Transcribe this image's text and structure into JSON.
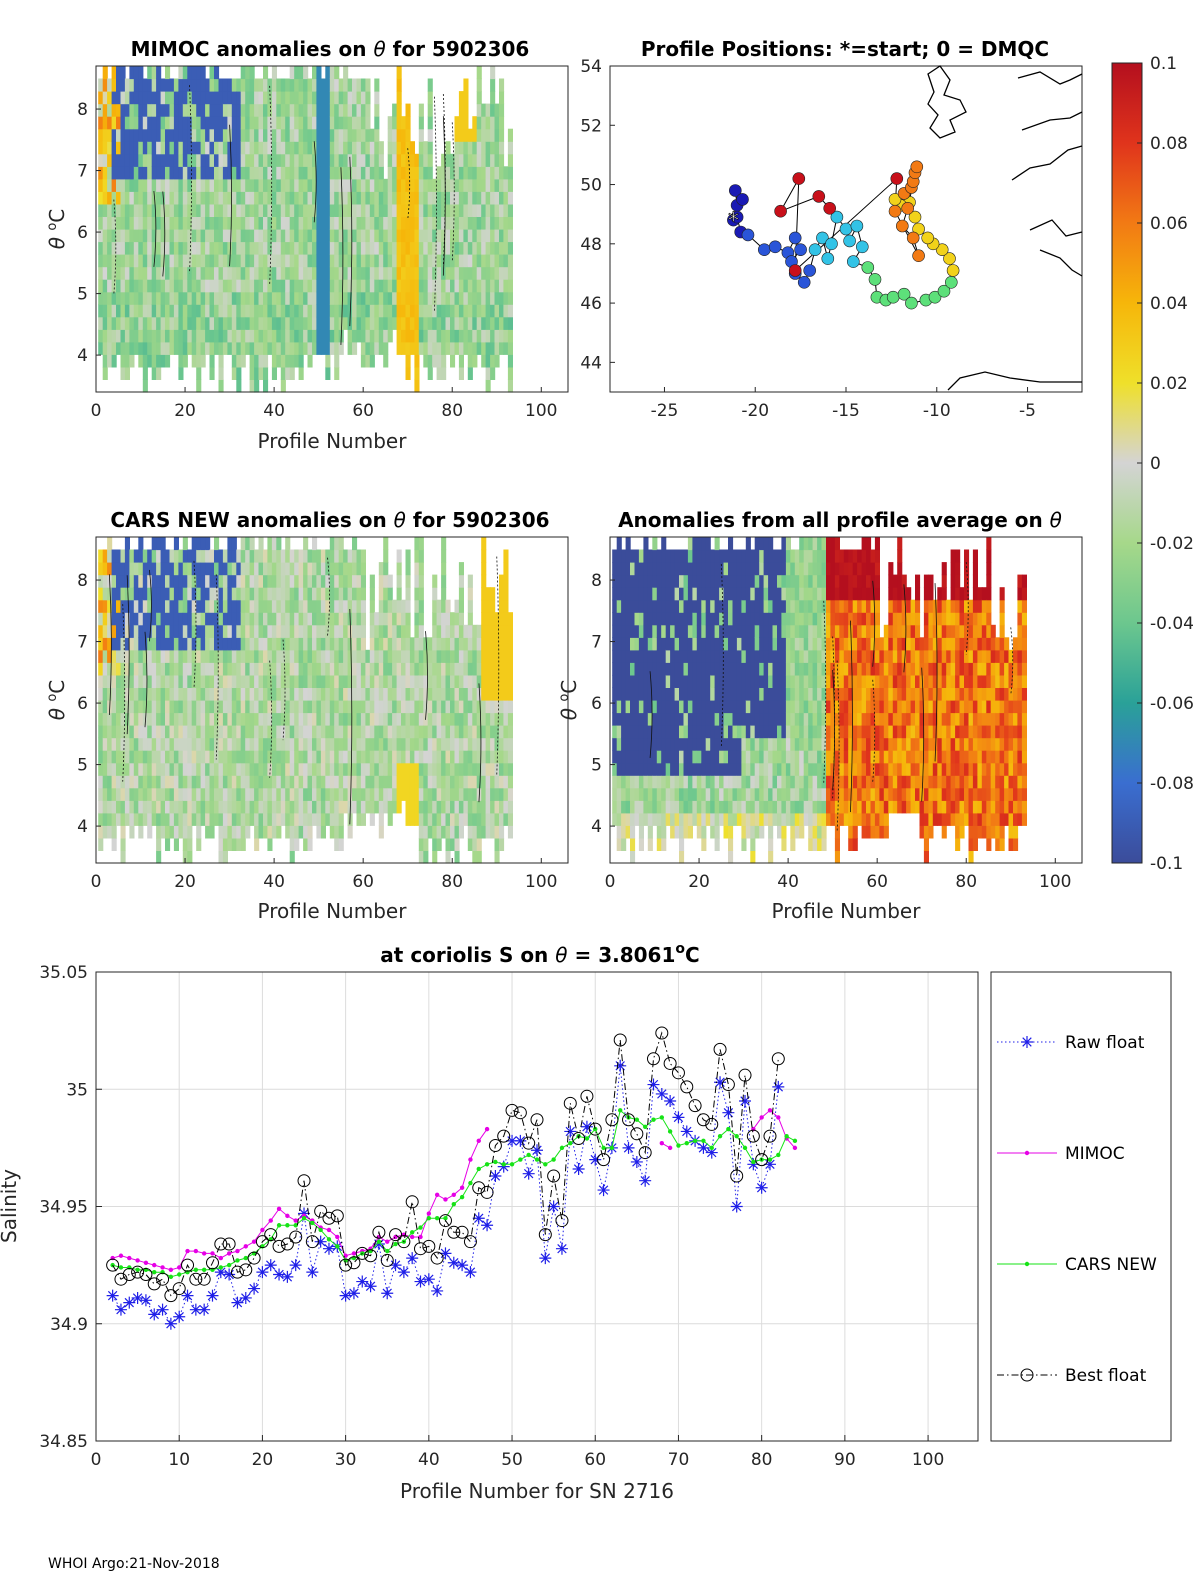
{
  "footer": "WHOI Argo:21-Nov-2018",
  "colorbar": {
    "ticks": [
      "0.1",
      "0.08",
      "0.06",
      "0.04",
      "0.02",
      "0",
      "-0.02",
      "-0.04",
      "-0.06",
      "-0.08",
      "-0.1"
    ],
    "values": [
      0.1,
      0.08,
      0.06,
      0.04,
      0.02,
      0,
      -0.02,
      -0.04,
      -0.06,
      -0.08,
      -0.1
    ],
    "colors": [
      "#b40f1e",
      "#e0341c",
      "#f27a14",
      "#f6b60a",
      "#efe02a",
      "#d4d4d4",
      "#a6d88a",
      "#6cc78e",
      "#2aa198",
      "#3a6ed0",
      "#3b4c9a"
    ]
  },
  "chart_data": [
    {
      "id": "mimoc",
      "type": "heatmap",
      "title_text": "MIMOC anomalies on",
      "title_symbol": "θ",
      "title_suffix": "  for 5902306",
      "xlabel": "Profile Number",
      "ylabel_symbol": "θ",
      "ylabel_unit": "C",
      "ylabel_super": "o",
      "xlim": [
        0,
        106
      ],
      "ylim": [
        3.4,
        8.7
      ],
      "xticks": [
        0,
        20,
        40,
        60,
        80,
        100
      ],
      "yticks": [
        4,
        5,
        6,
        7,
        8
      ],
      "profiles_shown": [
        1,
        93
      ],
      "description_values": [
        -0.1,
        0.1
      ]
    },
    {
      "id": "positions",
      "type": "scatter",
      "title": "Profile Positions: *=start; 0 = DMQC",
      "xlim": [
        -28,
        -2
      ],
      "ylim": [
        43,
        54
      ],
      "xticks": [
        -25,
        -20,
        -15,
        -10,
        -5
      ],
      "yticks": [
        44,
        46,
        48,
        50,
        52,
        54
      ],
      "track": [
        [
          -21.2,
          48.8
        ],
        [
          -21.0,
          49.3
        ],
        [
          -21.1,
          49.8
        ],
        [
          -20.7,
          49.5
        ],
        [
          -21.0,
          48.9
        ],
        [
          -20.8,
          48.4
        ],
        [
          -20.4,
          48.3
        ],
        [
          -19.5,
          47.8
        ],
        [
          -18.9,
          47.9
        ],
        [
          -18.2,
          47.7
        ],
        [
          -17.8,
          48.2
        ],
        [
          -17.5,
          47.8
        ],
        [
          -18.0,
          47.4
        ],
        [
          -17.8,
          47.0
        ],
        [
          -17.3,
          46.7
        ],
        [
          -17.0,
          47.1
        ],
        [
          -16.7,
          47.8
        ],
        [
          -16.3,
          48.2
        ],
        [
          -16.0,
          47.5
        ],
        [
          -15.8,
          48.0
        ],
        [
          -15.5,
          48.9
        ],
        [
          -15.0,
          48.5
        ],
        [
          -14.8,
          48.1
        ],
        [
          -14.4,
          48.6
        ],
        [
          -14.1,
          47.9
        ],
        [
          -14.6,
          47.4
        ],
        [
          -13.8,
          47.2
        ],
        [
          -13.4,
          46.8
        ],
        [
          -13.3,
          46.2
        ],
        [
          -12.8,
          46.1
        ],
        [
          -12.4,
          46.2
        ],
        [
          -11.8,
          46.3
        ],
        [
          -11.4,
          46.0
        ],
        [
          -10.6,
          46.1
        ],
        [
          -10.1,
          46.2
        ],
        [
          -9.6,
          46.4
        ],
        [
          -9.2,
          46.7
        ],
        [
          -9.1,
          47.1
        ],
        [
          -9.3,
          47.5
        ],
        [
          -9.7,
          47.8
        ],
        [
          -10.2,
          48.0
        ],
        [
          -10.5,
          48.2
        ],
        [
          -11.0,
          48.5
        ],
        [
          -11.2,
          48.9
        ],
        [
          -11.5,
          49.4
        ],
        [
          -12.0,
          49.3
        ],
        [
          -12.3,
          49.5
        ],
        [
          -11.8,
          49.7
        ],
        [
          -11.4,
          49.9
        ],
        [
          -11.3,
          50.1
        ],
        [
          -11.2,
          50.4
        ],
        [
          -11.1,
          50.6
        ],
        [
          -11.6,
          49.2
        ],
        [
          -11.9,
          48.6
        ],
        [
          -11.3,
          48.2
        ],
        [
          -11.0,
          47.6
        ],
        [
          -12.3,
          49.1
        ],
        [
          -12.2,
          50.2
        ],
        [
          -17.8,
          47.1
        ],
        [
          -17.6,
          50.2
        ],
        [
          -18.6,
          49.1
        ],
        [
          -16.5,
          49.6
        ],
        [
          -15.9,
          49.2
        ]
      ],
      "start": [
        -21.2,
        48.8
      ]
    },
    {
      "id": "cars",
      "type": "heatmap",
      "title_text": "CARS NEW anomalies on",
      "title_symbol": "θ",
      "title_suffix": " for 5902306",
      "xlabel": "Profile Number",
      "ylabel_symbol": "θ",
      "ylabel_unit": "C",
      "ylabel_super": "o",
      "xlim": [
        0,
        106
      ],
      "ylim": [
        3.4,
        8.7
      ],
      "xticks": [
        0,
        20,
        40,
        60,
        80,
        100
      ],
      "yticks": [
        4,
        5,
        6,
        7,
        8
      ]
    },
    {
      "id": "avg",
      "type": "heatmap",
      "title_text": "Anomalies from all profile average on",
      "title_symbol": "θ",
      "xlabel": "Profile Number",
      "ylabel_symbol": "θ",
      "ylabel_unit": "C",
      "ylabel_super": "o",
      "xlim": [
        0,
        106
      ],
      "ylim": [
        3.4,
        8.7
      ],
      "xticks": [
        0,
        20,
        40,
        60,
        80,
        100
      ],
      "yticks": [
        4,
        5,
        6,
        7,
        8
      ]
    },
    {
      "id": "salinity",
      "type": "line",
      "title_text": "at coriolis S on",
      "title_symbol": "θ",
      "title_value": " = 3.8061",
      "title_super": "o",
      "title_unit": "C",
      "xlabel": "Profile Number for SN 2716",
      "ylabel": "Salinity",
      "xlim": [
        0,
        106
      ],
      "ylim": [
        34.85,
        35.05
      ],
      "xticks": [
        0,
        10,
        20,
        30,
        40,
        50,
        60,
        70,
        80,
        90,
        100
      ],
      "yticks": [
        34.85,
        34.9,
        34.95,
        35,
        35.05
      ],
      "ytick_labels": [
        "34.85",
        "34.9",
        "34.95",
        "35",
        "35.05"
      ],
      "grid": true,
      "legend_position": "right-outside",
      "x": [
        2,
        3,
        4,
        5,
        6,
        7,
        8,
        9,
        10,
        11,
        12,
        13,
        14,
        15,
        16,
        17,
        18,
        19,
        20,
        21,
        22,
        23,
        24,
        25,
        26,
        27,
        28,
        29,
        30,
        31,
        32,
        33,
        34,
        35,
        36,
        37,
        38,
        39,
        40,
        41,
        42,
        43,
        44,
        45,
        46,
        47,
        48,
        49,
        50,
        51,
        52,
        53,
        54,
        55,
        56,
        57,
        58,
        59,
        60,
        61,
        62,
        63,
        64,
        65,
        66,
        67,
        68,
        69,
        70,
        71,
        72,
        73,
        74,
        75,
        76,
        77,
        78,
        79,
        80,
        81,
        82,
        83,
        84
      ],
      "series": [
        {
          "name": "Raw float",
          "color": "#1f1fe8",
          "style": "dotted-asterisk",
          "values": [
            34.912,
            34.906,
            34.909,
            34.911,
            34.91,
            34.904,
            34.906,
            34.9,
            34.903,
            34.912,
            34.906,
            34.906,
            34.912,
            34.922,
            34.921,
            34.909,
            34.911,
            34.915,
            34.922,
            34.925,
            34.921,
            34.92,
            34.925,
            34.947,
            34.922,
            34.935,
            34.932,
            34.933,
            34.912,
            34.913,
            34.918,
            34.916,
            34.934,
            34.913,
            34.925,
            34.922,
            34.928,
            34.918,
            34.919,
            34.914,
            34.93,
            34.926,
            34.925,
            34.922,
            34.945,
            34.942,
            34.963,
            34.967,
            34.978,
            34.978,
            34.964,
            34.974,
            34.928,
            34.95,
            34.932,
            34.982,
            34.966,
            34.984,
            34.97,
            34.957,
            34.975,
            35.01,
            34.975,
            34.969,
            34.961,
            35.002,
            34.998,
            34.995,
            34.988,
            34.982,
            34.978,
            34.975,
            34.973,
            35.003,
            34.99,
            34.95,
            34.995,
            34.968,
            34.958,
            34.968,
            35.001,
            null,
            null
          ]
        },
        {
          "name": "MIMOC",
          "color": "#e600e6",
          "style": "solid-dot",
          "values": [
            34.928,
            34.929,
            34.928,
            34.927,
            34.926,
            34.925,
            34.924,
            34.923,
            34.924,
            34.931,
            34.931,
            34.93,
            34.93,
            34.928,
            34.93,
            34.931,
            34.933,
            34.935,
            34.94,
            34.944,
            34.949,
            34.946,
            34.944,
            34.946,
            34.944,
            34.941,
            34.94,
            34.937,
            34.929,
            34.93,
            34.931,
            34.932,
            34.937,
            34.935,
            34.937,
            34.938,
            34.937,
            34.937,
            34.947,
            34.955,
            34.953,
            34.955,
            34.958,
            34.97,
            34.978,
            34.983,
            null,
            null,
            null,
            null,
            null,
            null,
            null,
            null,
            null,
            null,
            null,
            null,
            null,
            null,
            null,
            null,
            null,
            null,
            null,
            null,
            34.977,
            34.975,
            null,
            null,
            null,
            null,
            null,
            null,
            null,
            null,
            null,
            34.983,
            34.988,
            34.991,
            34.988,
            34.979,
            34.975
          ]
        },
        {
          "name": "CARS NEW",
          "color": "#16e316",
          "style": "solid-dot",
          "values": [
            34.925,
            34.924,
            34.924,
            34.923,
            34.923,
            34.922,
            34.922,
            34.92,
            34.921,
            34.922,
            34.923,
            34.923,
            34.923,
            34.924,
            34.925,
            34.927,
            34.928,
            34.93,
            34.933,
            34.936,
            34.942,
            34.942,
            34.942,
            34.945,
            34.943,
            34.94,
            34.936,
            34.933,
            34.927,
            34.928,
            34.93,
            34.931,
            34.935,
            34.931,
            34.934,
            34.935,
            34.939,
            34.941,
            34.945,
            34.945,
            34.945,
            34.951,
            34.954,
            34.96,
            34.966,
            34.968,
            34.969,
            34.968,
            34.968,
            34.97,
            34.972,
            34.97,
            34.968,
            34.97,
            34.975,
            34.977,
            34.98,
            34.979,
            34.983,
            34.975,
            34.975,
            34.991,
            34.988,
            34.987,
            34.984,
            34.987,
            34.988,
            34.982,
            34.976,
            34.977,
            34.978,
            34.978,
            34.975,
            34.98,
            34.983,
            34.98,
            34.975,
            34.969,
            34.97,
            34.97,
            34.972,
            34.98,
            34.978
          ]
        },
        {
          "name": "Best float",
          "color": "#000000",
          "style": "dashdot-circle",
          "values": [
            34.925,
            34.919,
            34.921,
            34.922,
            34.921,
            34.917,
            34.919,
            34.912,
            34.915,
            34.925,
            34.919,
            34.919,
            34.926,
            34.934,
            34.934,
            34.922,
            34.923,
            34.928,
            34.935,
            34.938,
            34.933,
            34.934,
            34.937,
            34.961,
            34.935,
            34.948,
            34.945,
            34.946,
            34.925,
            34.926,
            34.93,
            34.929,
            34.939,
            34.927,
            34.938,
            34.935,
            34.952,
            34.932,
            34.933,
            34.928,
            34.944,
            34.939,
            34.939,
            34.935,
            34.958,
            34.956,
            34.976,
            34.98,
            34.991,
            34.99,
            34.977,
            34.987,
            34.938,
            34.963,
            34.944,
            34.994,
            34.979,
            34.997,
            34.983,
            34.97,
            34.987,
            35.021,
            34.987,
            34.981,
            34.973,
            35.013,
            35.024,
            35.011,
            35.007,
            35.001,
            34.993,
            34.987,
            34.985,
            35.017,
            35.002,
            34.963,
            35.006,
            34.98,
            34.97,
            34.98,
            35.013,
            null,
            null
          ]
        }
      ]
    }
  ]
}
